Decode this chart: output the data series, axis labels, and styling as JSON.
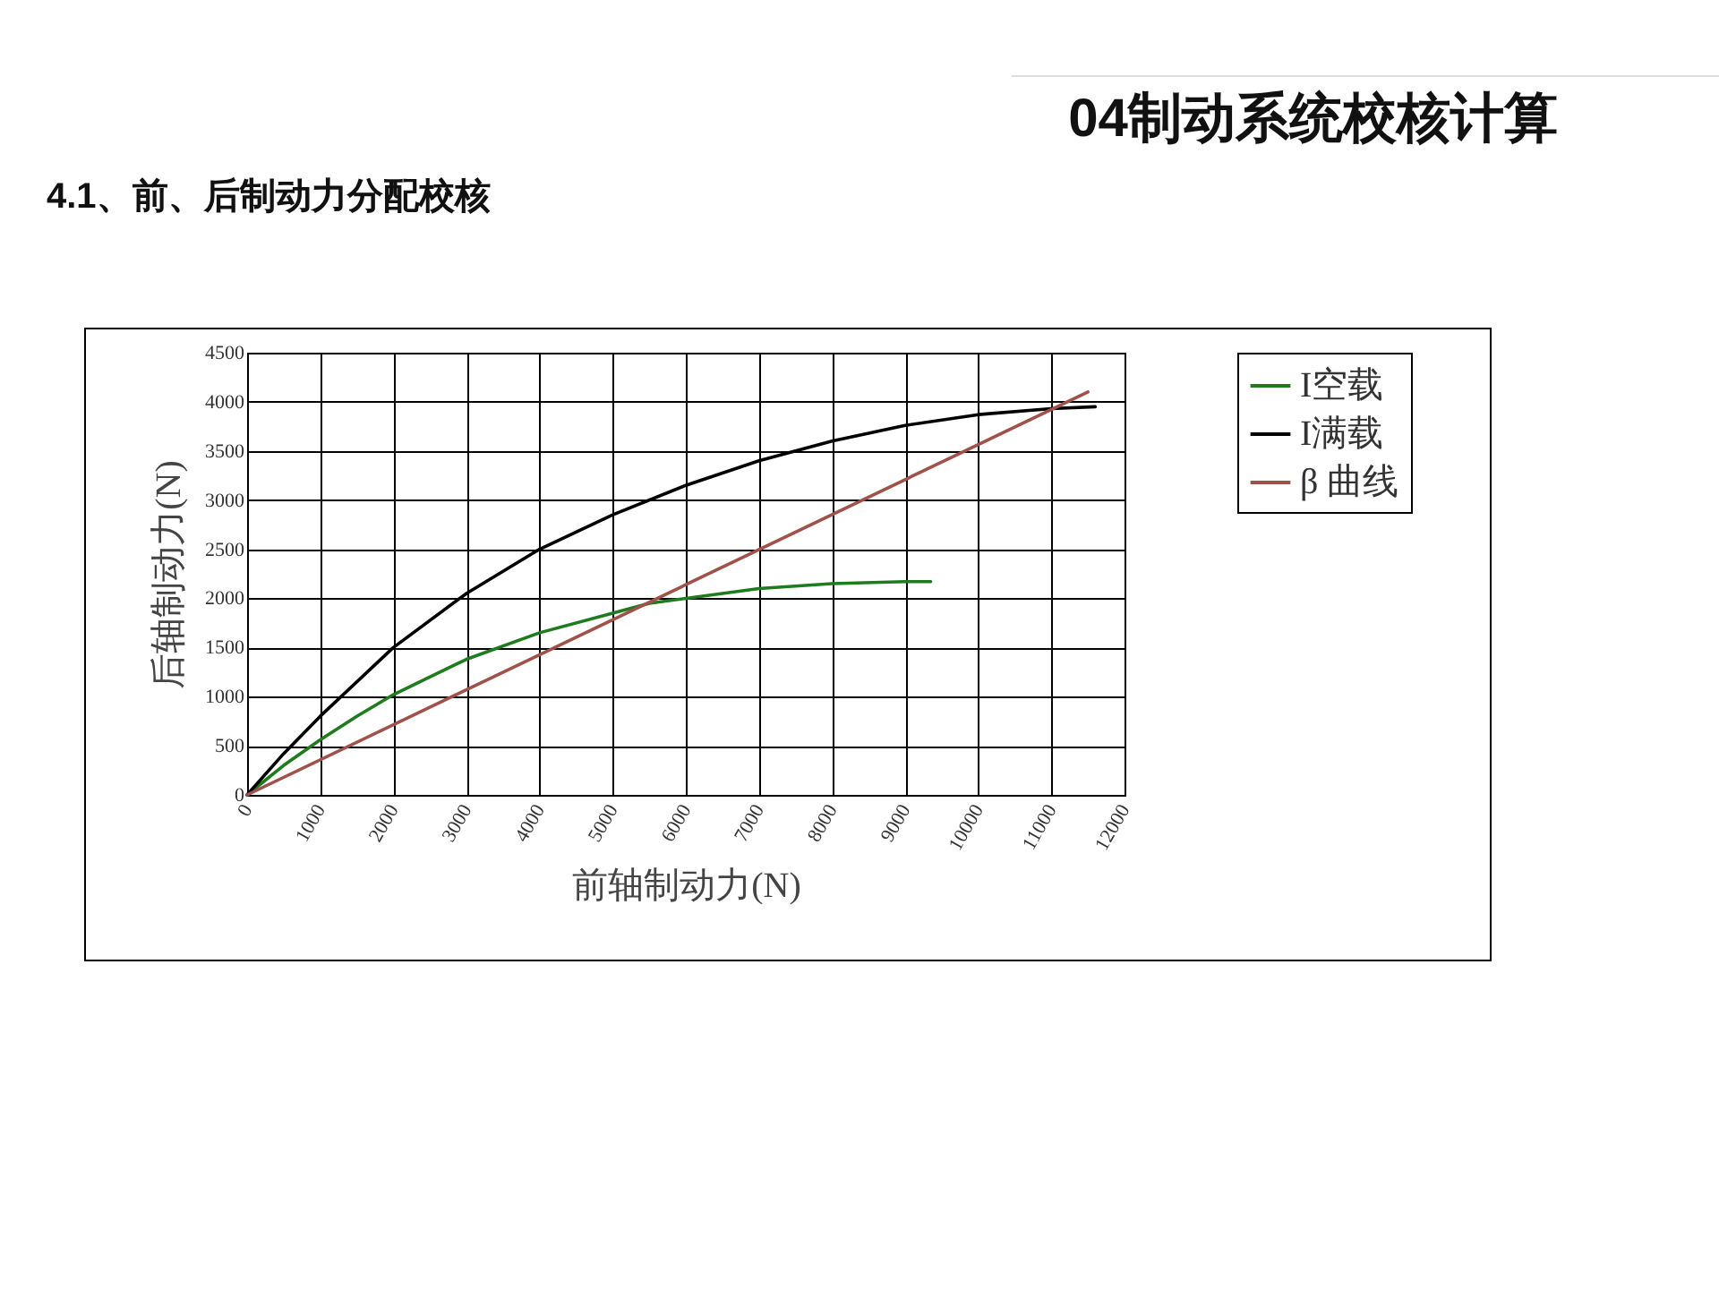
{
  "chart_data": {
    "type": "line",
    "title": "04制动系统校核计算",
    "subtitle": "4.1、前、后制动力分配校核",
    "xlabel": "前轴制动力(N)",
    "ylabel": "后轴制动力(N)",
    "xlim": [
      0,
      12000
    ],
    "xticks": [
      0,
      1000,
      2000,
      3000,
      4000,
      5000,
      6000,
      7000,
      8000,
      9000,
      10000,
      11000,
      12000
    ],
    "ylim": [
      0,
      4500
    ],
    "yticks": [
      0,
      500,
      1000,
      1500,
      2000,
      2500,
      3000,
      3500,
      4000,
      4500
    ],
    "grid": true,
    "legend": "right",
    "series": [
      {
        "name": "I空载",
        "color": "#1e7b1e",
        "x": [
          0,
          500,
          1000,
          1500,
          2000,
          3000,
          4000,
          5000,
          5500,
          6000,
          7000,
          8000,
          9000,
          9350
        ],
        "values": [
          0,
          300,
          560,
          800,
          1020,
          1380,
          1650,
          1850,
          1950,
          2000,
          2100,
          2150,
          2170,
          2170
        ]
      },
      {
        "name": "I满载",
        "color": "#000000",
        "x": [
          0,
          500,
          1000,
          2000,
          3000,
          4000,
          5000,
          6000,
          7000,
          8000,
          9000,
          10000,
          11000,
          11600
        ],
        "values": [
          0,
          420,
          800,
          1500,
          2050,
          2500,
          2850,
          3150,
          3400,
          3600,
          3760,
          3870,
          3930,
          3950
        ]
      },
      {
        "name": "β 曲线",
        "color": "#a0524a",
        "x": [
          0,
          11500
        ],
        "values": [
          0,
          4100
        ]
      }
    ]
  }
}
